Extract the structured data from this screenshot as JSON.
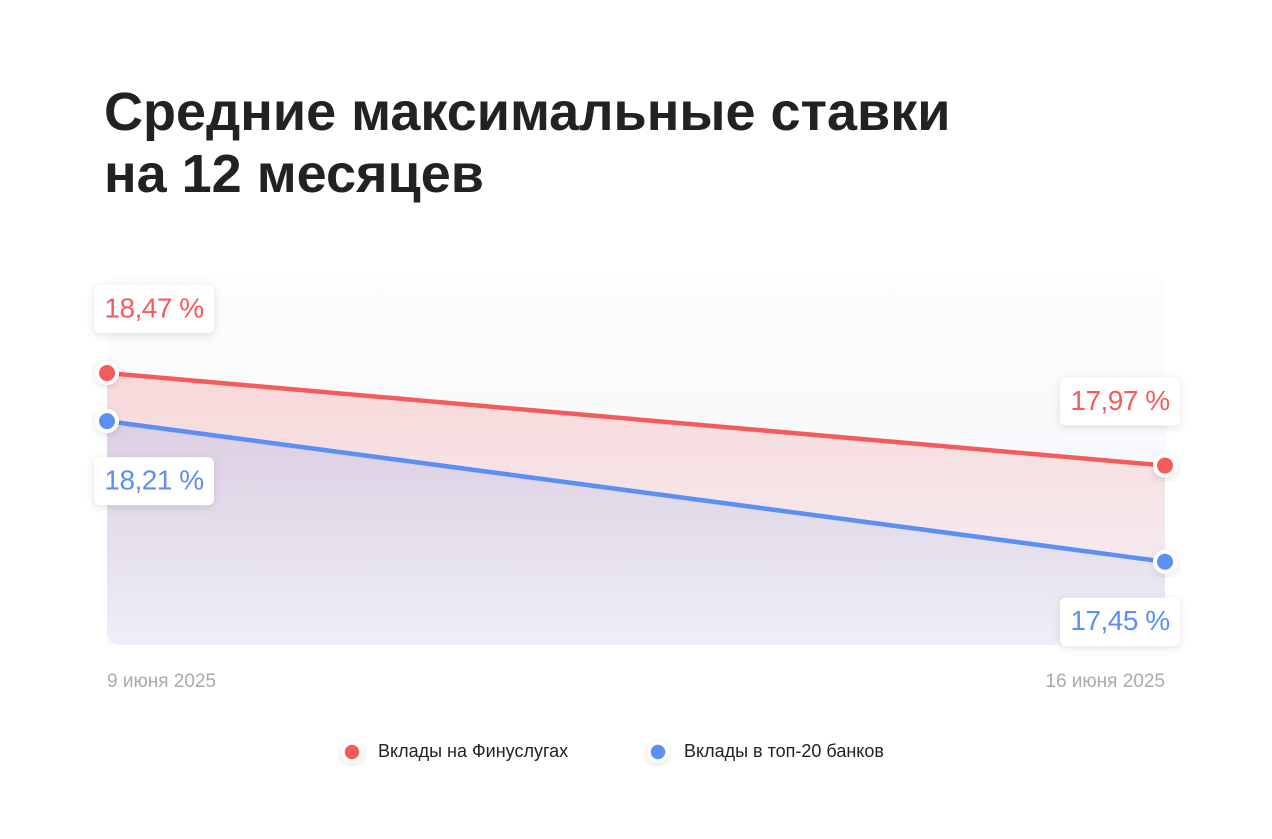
{
  "chart_data": {
    "type": "line",
    "title": [
      "Средние максимальные ставки",
      "на 12 месяцев"
    ],
    "categories": [
      "9 июня 2025",
      "16 июня 2025"
    ],
    "series": [
      {
        "name": "Вклады на Финуслугах",
        "color": "#f45b5b",
        "values": [
          18.47,
          17.97
        ],
        "value_labels": [
          "18,47 %",
          "17,97 %"
        ]
      },
      {
        "name": "Вклады в топ-20 банков",
        "color": "#5b8ff5",
        "values": [
          18.21,
          17.45
        ],
        "value_labels": [
          "18,21 %",
          "17,45 %"
        ]
      }
    ],
    "ylim": [
      17,
      19
    ]
  }
}
